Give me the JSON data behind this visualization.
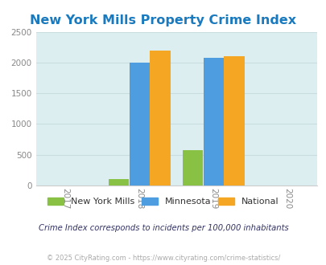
{
  "title": "New York Mills Property Crime Index",
  "title_color": "#1a7abf",
  "title_fontsize": 11.5,
  "years": [
    2017,
    2018,
    2019,
    2020
  ],
  "bar_groups": {
    "2018": {
      "New York Mills": 100,
      "Minnesota": 2000,
      "National": 2200
    },
    "2019": {
      "New York Mills": 570,
      "Minnesota": 2075,
      "National": 2100
    }
  },
  "series_colors": {
    "New York Mills": "#88c144",
    "Minnesota": "#4d9de0",
    "National": "#f5a623"
  },
  "ylim": [
    0,
    2500
  ],
  "yticks": [
    0,
    500,
    1000,
    1500,
    2000,
    2500
  ],
  "outer_bg": "#ffffff",
  "plot_bg": "#ddeef0",
  "grid_color": "#c8dde0",
  "bar_width": 0.28,
  "legend_labels": [
    "New York Mills",
    "Minnesota",
    "National"
  ],
  "note_text": "Crime Index corresponds to incidents per 100,000 inhabitants",
  "copyright_text": "© 2025 CityRating.com - https://www.cityrating.com/crime-statistics/",
  "note_color": "#333366",
  "copyright_color": "#aaaaaa",
  "tick_color": "#888888"
}
